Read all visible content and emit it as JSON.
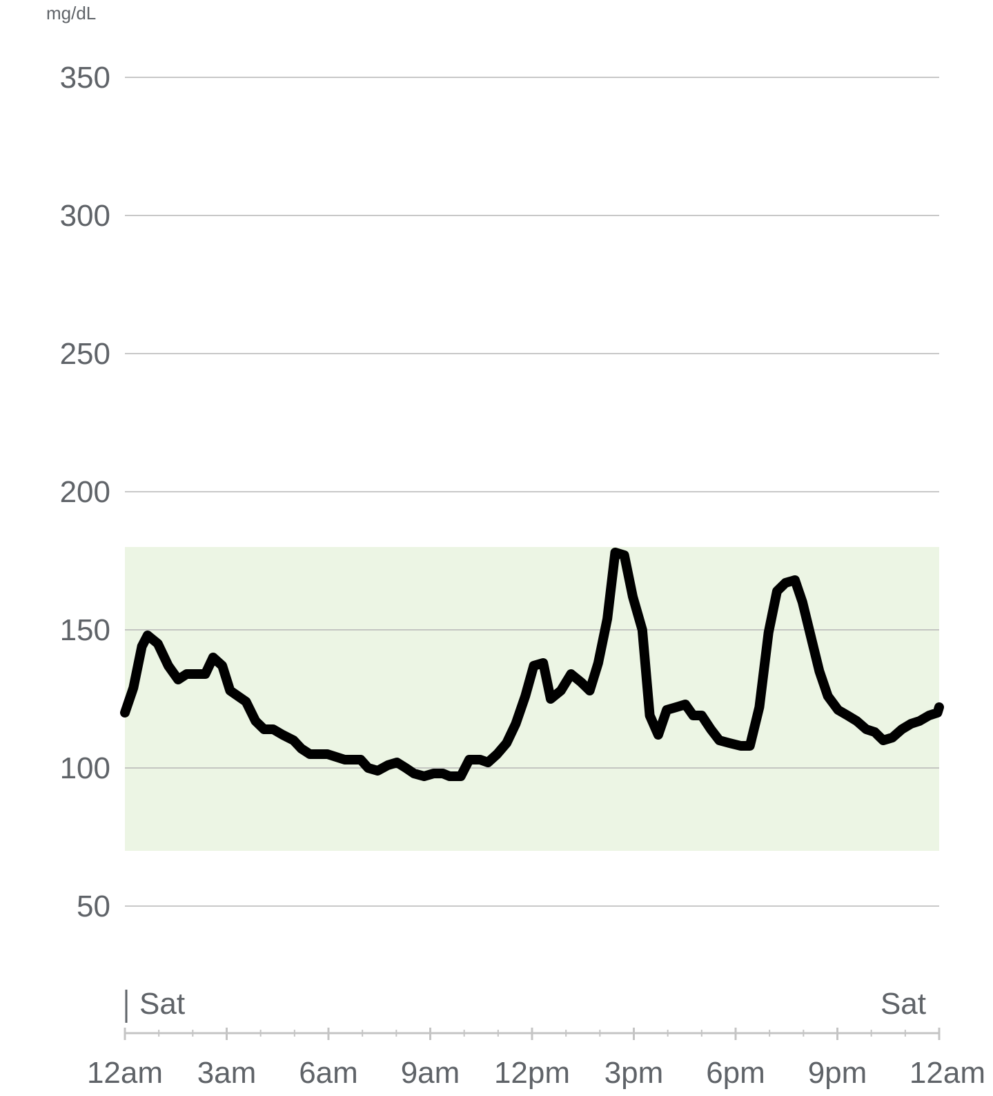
{
  "chart_data": {
    "type": "line",
    "unit_label": "mg/dL",
    "y_ticks": [
      "350",
      "300",
      "250",
      "200",
      "150",
      "100",
      "50"
    ],
    "y_tick_values": [
      350,
      300,
      250,
      200,
      150,
      100,
      50
    ],
    "ylim": [
      12,
      362
    ],
    "target_range": [
      70,
      180
    ],
    "target_range_color": "#ecf5e4",
    "line_color": "#000000",
    "grid": true,
    "x_ticks": [
      "12am",
      "3am",
      "6am",
      "9am",
      "12pm",
      "3pm",
      "6pm",
      "9pm",
      "12am"
    ],
    "x_range_hours": [
      0,
      24
    ],
    "day_labels": [
      "Sat",
      "Sat"
    ],
    "series": [
      {
        "points": [
          [
            0.0,
            120
          ],
          [
            0.25,
            129
          ],
          [
            0.5,
            144
          ],
          [
            0.67,
            148
          ],
          [
            0.97,
            145
          ],
          [
            1.28,
            137
          ],
          [
            1.57,
            132
          ],
          [
            1.82,
            134
          ],
          [
            2.12,
            134
          ],
          [
            2.37,
            134
          ],
          [
            2.6,
            140
          ],
          [
            2.87,
            137
          ],
          [
            3.1,
            128
          ],
          [
            3.57,
            124
          ],
          [
            3.85,
            117
          ],
          [
            4.1,
            114
          ],
          [
            4.37,
            114
          ],
          [
            4.65,
            112
          ],
          [
            4.97,
            110
          ],
          [
            5.2,
            107
          ],
          [
            5.45,
            105
          ],
          [
            5.97,
            105
          ],
          [
            6.48,
            103
          ],
          [
            6.95,
            103
          ],
          [
            7.17,
            100
          ],
          [
            7.45,
            99
          ],
          [
            7.75,
            101
          ],
          [
            8.02,
            102
          ],
          [
            8.28,
            100
          ],
          [
            8.52,
            98
          ],
          [
            8.82,
            97
          ],
          [
            9.1,
            98
          ],
          [
            9.37,
            98
          ],
          [
            9.57,
            97
          ],
          [
            9.9,
            97
          ],
          [
            10.15,
            103
          ],
          [
            10.47,
            103
          ],
          [
            10.7,
            102
          ],
          [
            10.97,
            105
          ],
          [
            11.25,
            109
          ],
          [
            11.52,
            116
          ],
          [
            11.8,
            126
          ],
          [
            12.05,
            137
          ],
          [
            12.33,
            138
          ],
          [
            12.55,
            125
          ],
          [
            12.85,
            128
          ],
          [
            13.15,
            134
          ],
          [
            13.45,
            131
          ],
          [
            13.7,
            128
          ],
          [
            13.95,
            138
          ],
          [
            14.22,
            154
          ],
          [
            14.45,
            178
          ],
          [
            14.72,
            177
          ],
          [
            14.97,
            162
          ],
          [
            15.25,
            150
          ],
          [
            15.47,
            119
          ],
          [
            15.72,
            112
          ],
          [
            15.97,
            121
          ],
          [
            16.25,
            122
          ],
          [
            16.52,
            123
          ],
          [
            16.75,
            119
          ],
          [
            17.0,
            119
          ],
          [
            17.27,
            114
          ],
          [
            17.52,
            110
          ],
          [
            17.82,
            109
          ],
          [
            18.15,
            108
          ],
          [
            18.42,
            108
          ],
          [
            18.7,
            122
          ],
          [
            18.97,
            149
          ],
          [
            19.22,
            164
          ],
          [
            19.47,
            167
          ],
          [
            19.75,
            168
          ],
          [
            19.97,
            160
          ],
          [
            20.25,
            146
          ],
          [
            20.47,
            135
          ],
          [
            20.72,
            126
          ],
          [
            21.02,
            121
          ],
          [
            21.3,
            119
          ],
          [
            21.57,
            117
          ],
          [
            21.85,
            114
          ],
          [
            22.1,
            113
          ],
          [
            22.35,
            110
          ],
          [
            22.62,
            111
          ],
          [
            22.9,
            114
          ],
          [
            23.17,
            116
          ],
          [
            23.42,
            117
          ],
          [
            23.7,
            119
          ],
          [
            23.95,
            120
          ],
          [
            24.0,
            122
          ]
        ]
      }
    ]
  }
}
